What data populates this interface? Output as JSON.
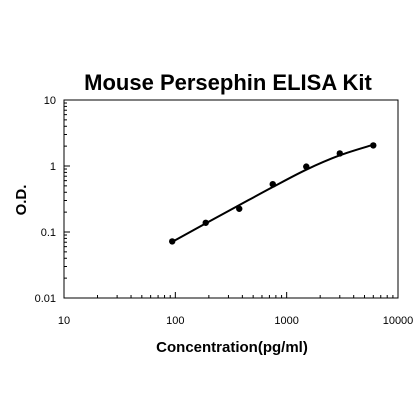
{
  "chart_data": {
    "type": "line",
    "title": "Mouse Persephin ELISA Kit",
    "xlabel": "Concentration(pg/ml)",
    "ylabel": "O.D.",
    "x_scale": "log",
    "y_scale": "log",
    "xlim": [
      10,
      10000
    ],
    "ylim": [
      0.01,
      10
    ],
    "x_ticks": [
      "10",
      "100",
      "1000",
      "10000"
    ],
    "y_ticks": [
      "0.01",
      "0.1",
      "1",
      "10"
    ],
    "grid": false,
    "legend": "none",
    "series": [
      {
        "points": [
          {
            "x": 93.75,
            "y": 0.072
          },
          {
            "x": 187.5,
            "y": 0.138
          },
          {
            "x": 375,
            "y": 0.225
          },
          {
            "x": 750,
            "y": 0.53
          },
          {
            "x": 1500,
            "y": 0.98
          },
          {
            "x": 3000,
            "y": 1.55
          },
          {
            "x": 6000,
            "y": 2.05
          }
        ],
        "fit": [
          {
            "x": 93.75,
            "y": 0.071
          },
          {
            "x": 187.5,
            "y": 0.135
          },
          {
            "x": 375,
            "y": 0.255
          },
          {
            "x": 750,
            "y": 0.48
          },
          {
            "x": 1500,
            "y": 0.88
          },
          {
            "x": 3000,
            "y": 1.45
          },
          {
            "x": 6000,
            "y": 2.1
          }
        ]
      }
    ],
    "colors": {
      "line": "#000000",
      "marker": "#000000",
      "axis": "#000000"
    }
  }
}
